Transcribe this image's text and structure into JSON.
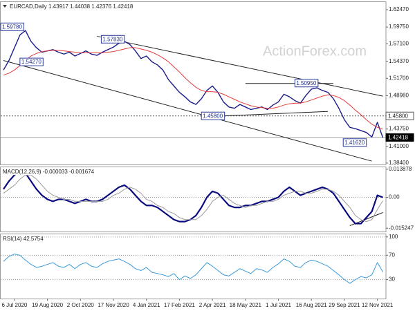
{
  "watermark": "ActionForex.com",
  "chart_data": [
    {
      "type": "line",
      "title": "EURCAD,Daily  1.43917 1.44038 1.42376 1.42418",
      "ylim": [
        1.3818,
        1.6377
      ],
      "yticks": [
        {
          "value": 1.6247,
          "label": "1.62470"
        },
        {
          "value": 1.5975,
          "label": "1.59750"
        },
        {
          "value": 1.571,
          "label": "1.57100"
        },
        {
          "value": 1.5437,
          "label": "1.54370"
        },
        {
          "value": 1.517,
          "label": "1.51700"
        },
        {
          "value": 1.4898,
          "label": "1.48980"
        },
        {
          "value": 1.4375,
          "label": "1.43750"
        },
        {
          "value": 1.41,
          "label": "1.41000"
        },
        {
          "value": 1.384,
          "label": "1.38400"
        }
      ],
      "series": [
        {
          "color": "#1c1c8c",
          "values": [
            1.53,
            1.545,
            1.565,
            1.585,
            1.592,
            1.575,
            1.565,
            1.558,
            1.56,
            1.562,
            1.558,
            1.555,
            1.558,
            1.552,
            1.556,
            1.56,
            1.555,
            1.553,
            1.558,
            1.562,
            1.566,
            1.572,
            1.575,
            1.57,
            1.56,
            1.548,
            1.552,
            1.543,
            1.538,
            1.53,
            1.515,
            1.505,
            1.495,
            1.488,
            1.48,
            1.476,
            1.485,
            1.498,
            1.505,
            1.495,
            1.48,
            1.472,
            1.47,
            1.476,
            1.472,
            1.468,
            1.47,
            1.472,
            1.468,
            1.475,
            1.48,
            1.492,
            1.488,
            1.482,
            1.478,
            1.49,
            1.5,
            1.502,
            1.498,
            1.495,
            1.485,
            1.47,
            1.452,
            1.44,
            1.438,
            1.435,
            1.432,
            1.425,
            1.448,
            1.424
          ]
        },
        {
          "color": "#e23a3a",
          "values": [
            1.522,
            1.525,
            1.53,
            1.537,
            1.545,
            1.552,
            1.556,
            1.559,
            1.56,
            1.561,
            1.561,
            1.56,
            1.559,
            1.558,
            1.557,
            1.557,
            1.557,
            1.557,
            1.557,
            1.558,
            1.559,
            1.561,
            1.563,
            1.565,
            1.565,
            1.563,
            1.561,
            1.558,
            1.554,
            1.549,
            1.543,
            1.535,
            1.527,
            1.518,
            1.51,
            1.503,
            1.498,
            1.496,
            1.496,
            1.495,
            1.492,
            1.488,
            1.484,
            1.48,
            1.477,
            1.474,
            1.472,
            1.471,
            1.47,
            1.47,
            1.472,
            1.475,
            1.477,
            1.478,
            1.478,
            1.48,
            1.483,
            1.486,
            1.489,
            1.491,
            1.49,
            1.487,
            1.482,
            1.475,
            1.467,
            1.46,
            1.452,
            1.445,
            1.44,
            1.437
          ]
        }
      ],
      "trendlines": [
        {
          "from": [
            17,
            1.583
          ],
          "to": [
            69,
            1.489
          ]
        },
        {
          "from": [
            0,
            1.545
          ],
          "to": [
            67,
            1.387
          ]
        },
        {
          "from": [
            44,
            1.509
          ],
          "to": [
            60,
            1.509
          ]
        },
        {
          "from": [
            40,
            1.458
          ],
          "to": [
            59,
            1.465
          ]
        }
      ],
      "levels": [
        {
          "value": 1.458,
          "label": "1.45800",
          "style": "dotted"
        },
        {
          "value": 1.42418,
          "label": "1.42418",
          "style": "current"
        }
      ],
      "annotations": [
        {
          "value": 1.5978,
          "label": "1.59780",
          "at": 3
        },
        {
          "value": 1.5783,
          "label": "1.57830",
          "at": 22
        },
        {
          "value": 1.5427,
          "label": "1.54270",
          "at": 3
        },
        {
          "value": 1.458,
          "label": "1.45800",
          "at": 36
        },
        {
          "value": 1.5095,
          "label": "1.50950",
          "at": 53
        },
        {
          "value": 1.4162,
          "label": "1.41620",
          "at": 66
        }
      ]
    },
    {
      "type": "line",
      "title": "MACD(12,26,9) -0.000033 -0.001674",
      "ylim": [
        -0.0169,
        0.0152
      ],
      "yticks": [
        0.013878,
        {
          "value": 0,
          "label": "0.00"
        },
        -0.015247
      ],
      "zero_line": true,
      "series": [
        {
          "color": "#0a0a80",
          "values": [
            0.004,
            0.008,
            0.011,
            0.013,
            0.012,
            0.008,
            0.004,
            0.001,
            -0.001,
            -0.002,
            -0.001,
            -0.001,
            -0.002,
            -0.003,
            -0.002,
            -0.001,
            -0.002,
            -0.002,
            -0.001,
            0.001,
            0.003,
            0.005,
            0.006,
            0.004,
            0.001,
            -0.002,
            -0.004,
            -0.004,
            -0.005,
            -0.007,
            -0.009,
            -0.011,
            -0.012,
            -0.012,
            -0.011,
            -0.009,
            -0.005,
            0.0,
            0.003,
            0.002,
            -0.001,
            -0.004,
            -0.005,
            -0.005,
            -0.004,
            -0.004,
            -0.003,
            -0.002,
            -0.002,
            -0.001,
            0.0,
            0.003,
            0.005,
            0.003,
            0.001,
            0.002,
            0.003,
            0.004,
            0.005,
            0.004,
            0.002,
            -0.002,
            -0.006,
            -0.01,
            -0.013,
            -0.013,
            -0.01,
            -0.007,
            0.001,
            -3.3e-05
          ]
        },
        {
          "color": "#9a9a9a",
          "values": [
            0.002,
            0.004,
            0.006,
            0.009,
            0.011,
            0.011,
            0.009,
            0.006,
            0.003,
            0.001,
            0.0,
            -0.001,
            -0.001,
            -0.002,
            -0.002,
            -0.002,
            -0.002,
            -0.002,
            -0.002,
            -0.001,
            0.001,
            0.002,
            0.004,
            0.005,
            0.004,
            0.002,
            -0.001,
            -0.002,
            -0.004,
            -0.005,
            -0.007,
            -0.008,
            -0.01,
            -0.011,
            -0.011,
            -0.011,
            -0.009,
            -0.006,
            -0.002,
            0.0,
            0.001,
            -0.001,
            -0.003,
            -0.004,
            -0.005,
            -0.004,
            -0.004,
            -0.003,
            -0.002,
            -0.002,
            -0.001,
            0.001,
            0.002,
            0.003,
            0.003,
            0.002,
            0.002,
            0.003,
            0.004,
            0.004,
            0.003,
            0.001,
            -0.002,
            -0.005,
            -0.009,
            -0.011,
            -0.012,
            -0.011,
            -0.006,
            -0.001674
          ]
        }
      ],
      "trendlines": [
        {
          "from": [
            63,
            -0.014
          ],
          "to": [
            69,
            -0.0075
          ]
        }
      ]
    },
    {
      "type": "line",
      "title": "RSI(14) 42.5754",
      "ylim": [
        -1,
        105.5
      ],
      "yticks": [
        100,
        70,
        30
      ],
      "grid": true,
      "series": [
        {
          "color": "#3a9ad9",
          "values": [
            60,
            68,
            72,
            70,
            62,
            55,
            50,
            52,
            55,
            58,
            52,
            50,
            55,
            48,
            55,
            58,
            52,
            50,
            56,
            60,
            62,
            64,
            60,
            55,
            48,
            45,
            50,
            42,
            40,
            38,
            35,
            40,
            30,
            36,
            32,
            38,
            48,
            58,
            52,
            45,
            38,
            36,
            42,
            48,
            44,
            40,
            48,
            46,
            42,
            50,
            56,
            64,
            60,
            52,
            50,
            58,
            62,
            60,
            56,
            52,
            45,
            38,
            30,
            24,
            30,
            35,
            33,
            38,
            58,
            42.5754
          ]
        }
      ],
      "categories": [
        null,
        null,
        "6 Jul 2020",
        null,
        null,
        null,
        null,
        null,
        "19 Aug 2020",
        null,
        null,
        null,
        null,
        null,
        "2 Oct 2020",
        null,
        null,
        null,
        null,
        null,
        "17 Nov 2020",
        null,
        null,
        null,
        null,
        null,
        "4 Jan 2021",
        null,
        null,
        null,
        null,
        null,
        "17 Feb 2021",
        null,
        null,
        null,
        null,
        null,
        "2 Apr 2021",
        null,
        null,
        null,
        null,
        null,
        "18 May 2021",
        null,
        null,
        null,
        null,
        null,
        "1 Jul 2021",
        null,
        null,
        null,
        null,
        null,
        "16 Aug 2021",
        null,
        null,
        null,
        null,
        null,
        "29 Sep 2021",
        null,
        null,
        null,
        null,
        null,
        "12 Nov 2021",
        null
      ]
    }
  ]
}
